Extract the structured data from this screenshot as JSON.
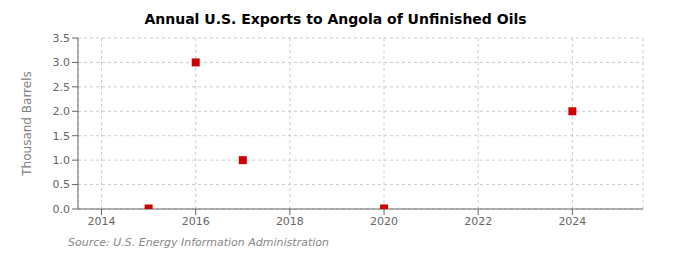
{
  "chart_data": {
    "type": "scatter",
    "title": "Annual U.S. Exports to Angola of Unfinished Oils",
    "y_label": "Thousand Barrels",
    "annotations": [
      "Source: U.S. Energy Information Administration"
    ],
    "x": [
      2015,
      2016,
      2017,
      2020,
      2024
    ],
    "values": [
      0.01,
      3.0,
      1.0,
      0.01,
      2.0
    ],
    "color": "#cc0000",
    "marker": "square",
    "xlim": [
      2013.5,
      2025.5
    ],
    "xticks": [
      2014,
      2016,
      2018,
      2020,
      2022,
      2024
    ],
    "ylim": [
      0.0,
      3.5
    ],
    "yticks": [
      {
        "value": 0,
        "label": "0.0"
      },
      0.5,
      {
        "value": 1,
        "label": "1.0"
      },
      1.5,
      {
        "value": 2,
        "label": "2.0"
      },
      2.5,
      {
        "value": 3,
        "label": "3.0"
      },
      3.5
    ],
    "grid": true
  }
}
